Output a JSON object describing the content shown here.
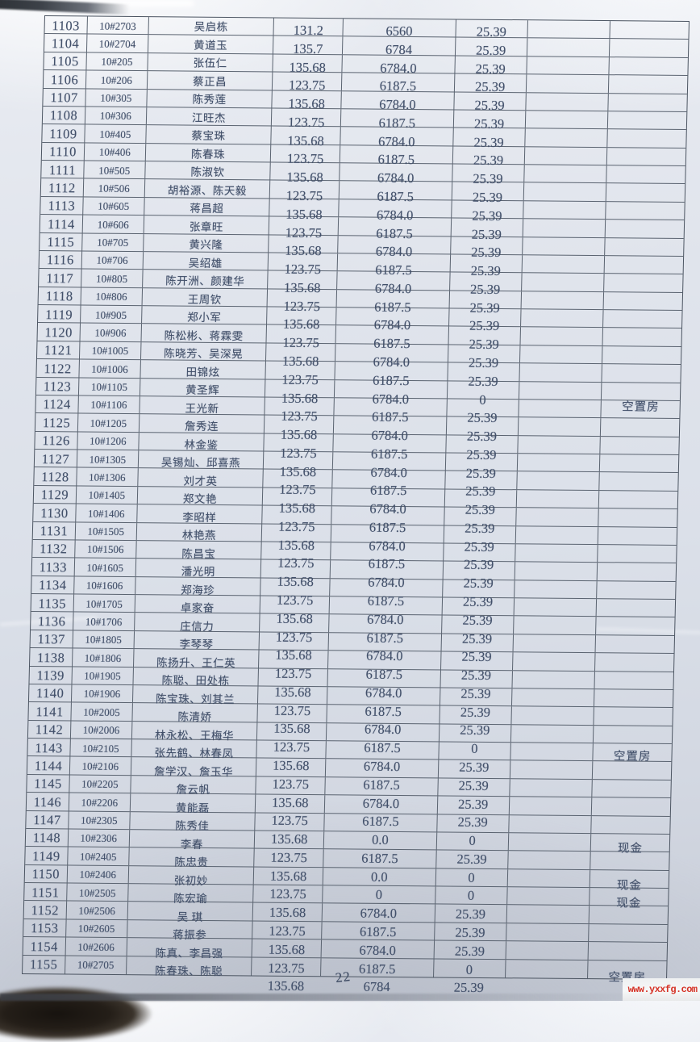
{
  "document": {
    "page_number": "22",
    "watermark": "www.yxxfg.com"
  },
  "colors": {
    "paper": "#dde2ea",
    "ink": "#42506a",
    "table_border": "#5a6370",
    "watermark_red": "#d53125",
    "desk_corner_dark": "#241e18"
  },
  "remarks_legend": {
    "vacant": "空置房",
    "cash": "现金"
  },
  "table": {
    "row_fields": [
      "seq",
      "unit",
      "owner",
      "area",
      "amount",
      "fee",
      "remark"
    ],
    "rows": [
      [
        "1103",
        "10#2703",
        "吴启栋",
        "131.2",
        "6560",
        "25.39",
        ""
      ],
      [
        "1104",
        "10#2704",
        "黄道玉",
        "135.7",
        "6784",
        "25.39",
        ""
      ],
      [
        "1105",
        "10#205",
        "张伍仁",
        "135.68",
        "6784.0",
        "25.39",
        ""
      ],
      [
        "1106",
        "10#206",
        "蔡正昌",
        "123.75",
        "6187.5",
        "25.39",
        ""
      ],
      [
        "1107",
        "10#305",
        "陈秀莲",
        "135.68",
        "6784.0",
        "25.39",
        ""
      ],
      [
        "1108",
        "10#306",
        "江旺杰",
        "123.75",
        "6187.5",
        "25.39",
        ""
      ],
      [
        "1109",
        "10#405",
        "蔡宝珠",
        "135.68",
        "6784.0",
        "25.39",
        ""
      ],
      [
        "1110",
        "10#406",
        "陈春珠",
        "123.75",
        "6187.5",
        "25.39",
        ""
      ],
      [
        "1111",
        "10#505",
        "陈淑钦",
        "135.68",
        "6784.0",
        "25.39",
        ""
      ],
      [
        "1112",
        "10#506",
        "胡裕源、陈天毅",
        "123.75",
        "6187.5",
        "25.39",
        ""
      ],
      [
        "1113",
        "10#605",
        "蒋昌超",
        "135.68",
        "6784.0",
        "25.39",
        ""
      ],
      [
        "1114",
        "10#606",
        "张章旺",
        "123.75",
        "6187.5",
        "25.39",
        ""
      ],
      [
        "1115",
        "10#705",
        "黄兴隆",
        "135.68",
        "6784.0",
        "25.39",
        ""
      ],
      [
        "1116",
        "10#706",
        "吴绍雄",
        "123.75",
        "6187.5",
        "25.39",
        ""
      ],
      [
        "1117",
        "10#805",
        "陈开洲、颜建华",
        "135.68",
        "6784.0",
        "25.39",
        ""
      ],
      [
        "1118",
        "10#806",
        "王周钦",
        "123.75",
        "6187.5",
        "25.39",
        ""
      ],
      [
        "1119",
        "10#905",
        "郑小军",
        "135.68",
        "6784.0",
        "25.39",
        ""
      ],
      [
        "1120",
        "10#906",
        "陈松彬、蒋霖雯",
        "123.75",
        "6187.5",
        "25.39",
        ""
      ],
      [
        "1121",
        "10#1005",
        "陈晓芳、吴深晃",
        "135.68",
        "6784.0",
        "25.39",
        ""
      ],
      [
        "1122",
        "10#1006",
        "田锦炫",
        "123.75",
        "6187.5",
        "25.39",
        ""
      ],
      [
        "1123",
        "10#1105",
        "黄圣辉",
        "135.68",
        "6784.0",
        "0",
        "空置房"
      ],
      [
        "1124",
        "10#1106",
        "王光新",
        "123.75",
        "6187.5",
        "25.39",
        ""
      ],
      [
        "1125",
        "10#1205",
        "詹秀连",
        "135.68",
        "6784.0",
        "25.39",
        ""
      ],
      [
        "1126",
        "10#1206",
        "林金鉴",
        "123.75",
        "6187.5",
        "25.39",
        ""
      ],
      [
        "1127",
        "10#1305",
        "吴锡灿、邱喜燕",
        "135.68",
        "6784.0",
        "25.39",
        ""
      ],
      [
        "1128",
        "10#1306",
        "刘才英",
        "123.75",
        "6187.5",
        "25.39",
        ""
      ],
      [
        "1129",
        "10#1405",
        "郑文艳",
        "135.68",
        "6784.0",
        "25.39",
        ""
      ],
      [
        "1130",
        "10#1406",
        "李昭样",
        "123.75",
        "6187.5",
        "25.39",
        ""
      ],
      [
        "1131",
        "10#1505",
        "林艳燕",
        "135.68",
        "6784.0",
        "25.39",
        ""
      ],
      [
        "1132",
        "10#1506",
        "陈昌宝",
        "123.75",
        "6187.5",
        "25.39",
        ""
      ],
      [
        "1133",
        "10#1605",
        "潘光明",
        "135.68",
        "6784.0",
        "25.39",
        ""
      ],
      [
        "1134",
        "10#1606",
        "郑海珍",
        "123.75",
        "6187.5",
        "25.39",
        ""
      ],
      [
        "1135",
        "10#1705",
        "卓家奋",
        "135.68",
        "6784.0",
        "25.39",
        ""
      ],
      [
        "1136",
        "10#1706",
        "庄信力",
        "123.75",
        "6187.5",
        "25.39",
        ""
      ],
      [
        "1137",
        "10#1805",
        "李琴琴",
        "135.68",
        "6784.0",
        "25.39",
        ""
      ],
      [
        "1138",
        "10#1806",
        "陈扬升、王仁英",
        "123.75",
        "6187.5",
        "25.39",
        ""
      ],
      [
        "1139",
        "10#1905",
        "陈聪、田处栋",
        "135.68",
        "6784.0",
        "25.39",
        ""
      ],
      [
        "1140",
        "10#1906",
        "陈宝珠、刘其兰",
        "123.75",
        "6187.5",
        "25.39",
        ""
      ],
      [
        "1141",
        "10#2005",
        "陈清娇",
        "135.68",
        "6784.0",
        "25.39",
        ""
      ],
      [
        "1142",
        "10#2006",
        "林永松、王梅华",
        "123.75",
        "6187.5",
        "0",
        "空置房"
      ],
      [
        "1143",
        "10#2105",
        "张先鹤、林春凤",
        "135.68",
        "6784.0",
        "25.39",
        ""
      ],
      [
        "1144",
        "10#2106",
        "詹学汉、詹玉华",
        "123.75",
        "6187.5",
        "25.39",
        ""
      ],
      [
        "1145",
        "10#2205",
        "詹云帆",
        "135.68",
        "6784.0",
        "25.39",
        ""
      ],
      [
        "1146",
        "10#2206",
        "黄能磊",
        "123.75",
        "6187.5",
        "25.39",
        ""
      ],
      [
        "1147",
        "10#2305",
        "陈秀佳",
        "135.68",
        "0.0",
        "0",
        "现金"
      ],
      [
        "1148",
        "10#2306",
        "李春",
        "123.75",
        "6187.5",
        "25.39",
        ""
      ],
      [
        "1149",
        "10#2405",
        "陈忠贵",
        "135.68",
        "0.0",
        "0",
        "现金"
      ],
      [
        "1150",
        "10#2406",
        "张初妙",
        "123.75",
        "0",
        "0",
        "现金"
      ],
      [
        "1151",
        "10#2505",
        "陈宏瑜",
        "135.68",
        "6784.0",
        "25.39",
        ""
      ],
      [
        "1152",
        "10#2506",
        "吴  琪",
        "123.75",
        "6187.5",
        "25.39",
        ""
      ],
      [
        "1153",
        "10#2605",
        "蒋振参",
        "135.68",
        "6784.0",
        "25.39",
        ""
      ],
      [
        "1154",
        "10#2606",
        "陈真、李昌强",
        "123.75",
        "6187.5",
        "0",
        "空置房"
      ],
      [
        "1155",
        "10#2705",
        "陈春珠、陈聪",
        "135.68",
        "6784",
        "25.39",
        ""
      ]
    ]
  }
}
